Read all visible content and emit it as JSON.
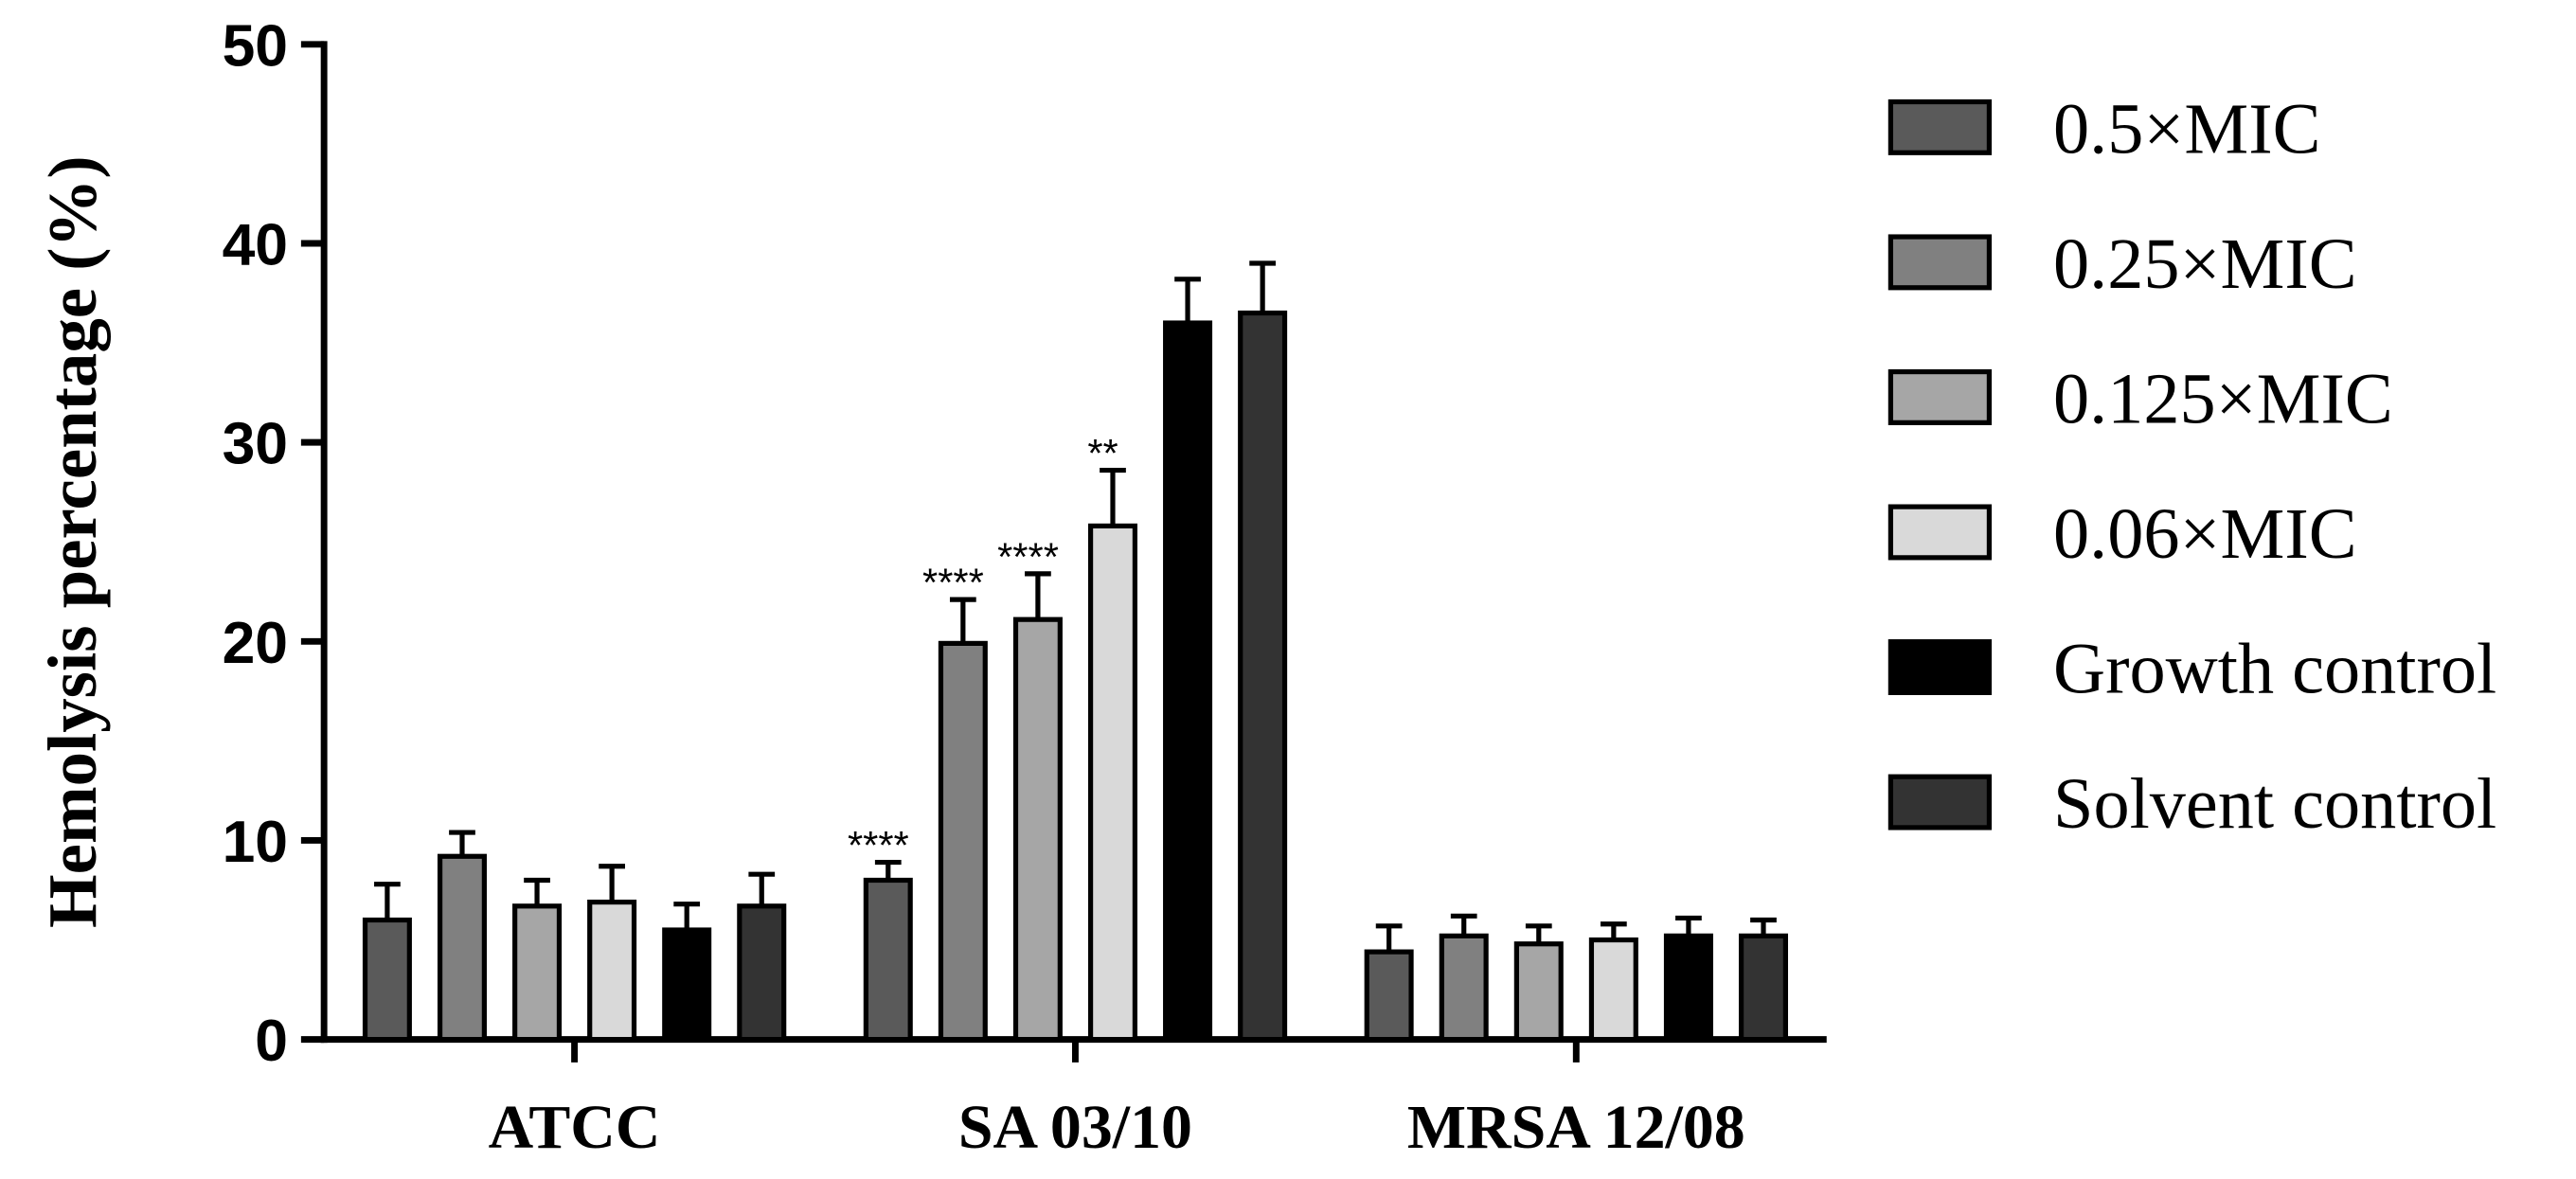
{
  "chart_data": {
    "type": "bar",
    "y_label": "Hemolysis percentage (%)",
    "categories": [
      "ATCC",
      "SA 03/10",
      "MRSA 12/08"
    ],
    "ylim": [
      0,
      50
    ],
    "yticks": [
      0,
      10,
      20,
      30,
      40,
      50
    ],
    "series": [
      {
        "name": "0.5×MIC",
        "color": "#5a5a5a",
        "values": [
          6.0,
          8.0,
          4.4
        ],
        "errors": [
          1.8,
          0.9,
          1.3
        ],
        "annotations": [
          null,
          "****",
          null
        ]
      },
      {
        "name": "0.25×MIC",
        "color": "#808080",
        "values": [
          9.2,
          19.9,
          5.2
        ],
        "errors": [
          1.2,
          2.2,
          1.0
        ],
        "annotations": [
          null,
          "****",
          null
        ]
      },
      {
        "name": "0.125×MIC",
        "color": "#a6a6a6",
        "values": [
          6.7,
          21.1,
          4.8
        ],
        "errors": [
          1.3,
          2.3,
          0.9
        ],
        "annotations": [
          null,
          "****",
          null
        ]
      },
      {
        "name": "0.06×MIC",
        "color": "#d9d9d9",
        "values": [
          6.9,
          25.8,
          5.0
        ],
        "errors": [
          1.8,
          2.8,
          0.8
        ],
        "annotations": [
          null,
          "**",
          null
        ]
      },
      {
        "name": "Growth control",
        "color": "#000000",
        "values": [
          5.5,
          36.0,
          5.2
        ],
        "errors": [
          1.3,
          2.2,
          0.9
        ],
        "annotations": [
          null,
          null,
          null
        ]
      },
      {
        "name": "Solvent control",
        "color": "#333333",
        "values": [
          6.7,
          36.5,
          5.2
        ],
        "errors": [
          1.6,
          2.5,
          0.8
        ],
        "annotations": [
          null,
          null,
          null
        ]
      }
    ]
  }
}
